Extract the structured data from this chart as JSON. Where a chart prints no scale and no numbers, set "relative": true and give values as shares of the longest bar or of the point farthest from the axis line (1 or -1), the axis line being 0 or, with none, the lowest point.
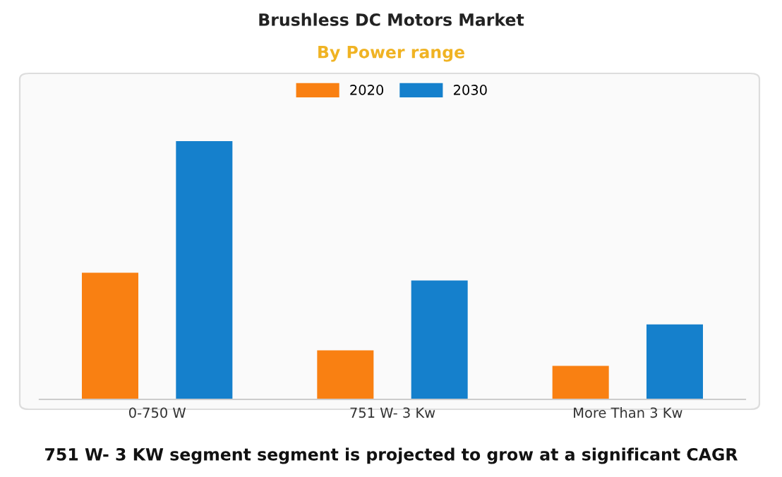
{
  "chart_data": {
    "type": "bar",
    "title": "Brushless DC Motors Market",
    "subtitle": "By Power range",
    "categories": [
      "0-750 W",
      "751 W- 3 Kw",
      "More Than 3 Kw"
    ],
    "series": [
      {
        "name": "2020",
        "color": "#f98012",
        "values": [
          0.49,
          0.19,
          0.13
        ]
      },
      {
        "name": "2030",
        "color": "#1580cc",
        "values": [
          1,
          0.46,
          0.29
        ]
      }
    ],
    "relative": true,
    "legend": "top",
    "grid": false,
    "annotations": [
      "751 W- 3 KW segment segment is projected to grow at a significant CAGR"
    ]
  }
}
